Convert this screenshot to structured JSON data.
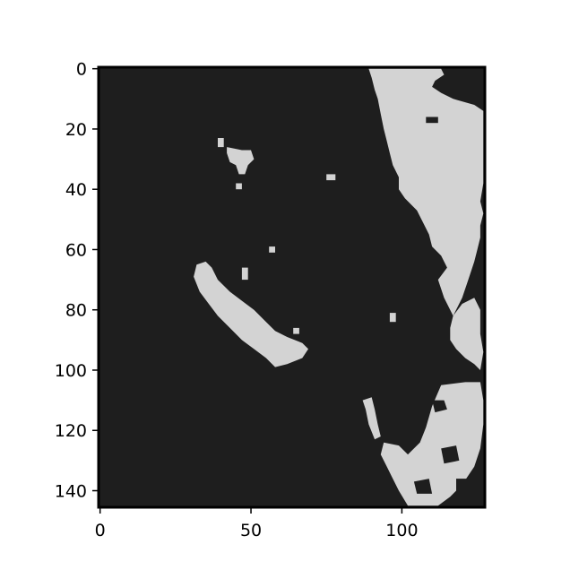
{
  "chart_data": {
    "type": "heatmap",
    "title": "",
    "xlabel": "",
    "ylabel": "",
    "x_range": [
      -0.5,
      127.5
    ],
    "y_range": [
      -0.5,
      145.5
    ],
    "y_inverted": true,
    "x_ticks": [
      0,
      50,
      100
    ],
    "y_ticks": [
      0,
      20,
      40,
      60,
      80,
      100,
      120,
      140
    ],
    "grid": false,
    "legend": "none",
    "colors": {
      "background": "#1e1e1e",
      "foreground": "#d3d3d3",
      "frame": "#000000"
    },
    "binary_mask_regions": [
      {
        "name": "right-top-mass",
        "outline": [
          [
            89,
            0
          ],
          [
            113,
            0
          ],
          [
            114,
            2
          ],
          [
            111,
            4
          ],
          [
            110,
            6
          ],
          [
            113,
            8
          ],
          [
            117,
            10
          ],
          [
            124,
            12
          ],
          [
            127,
            14
          ],
          [
            127,
            22
          ],
          [
            127,
            30
          ],
          [
            127,
            38
          ],
          [
            126,
            44
          ],
          [
            127,
            48
          ],
          [
            126,
            52
          ],
          [
            126,
            56
          ],
          [
            125,
            60
          ],
          [
            124,
            64
          ],
          [
            122,
            70
          ],
          [
            120,
            76
          ],
          [
            117,
            82
          ],
          [
            114,
            76
          ],
          [
            112,
            70
          ],
          [
            115,
            66
          ],
          [
            113,
            62
          ],
          [
            110,
            59
          ],
          [
            109,
            55
          ],
          [
            107,
            51
          ],
          [
            105,
            47
          ],
          [
            103,
            45
          ],
          [
            101,
            43
          ],
          [
            99,
            40
          ],
          [
            99,
            36
          ],
          [
            97,
            32
          ],
          [
            96,
            28
          ],
          [
            95,
            24
          ],
          [
            94,
            20
          ],
          [
            93,
            15
          ],
          [
            92,
            10
          ],
          [
            91,
            7
          ],
          [
            90,
            3
          ]
        ]
      },
      {
        "name": "right-middle-strip",
        "outline": [
          [
            117,
            82
          ],
          [
            120,
            78
          ],
          [
            124,
            76
          ],
          [
            126,
            80
          ],
          [
            126,
            88
          ],
          [
            127,
            94
          ],
          [
            126,
            100
          ],
          [
            124,
            98
          ],
          [
            121,
            96
          ],
          [
            118,
            93
          ],
          [
            116,
            90
          ],
          [
            116,
            86
          ]
        ]
      },
      {
        "name": "bottom-right-mass",
        "outline": [
          [
            113,
            105
          ],
          [
            121,
            104
          ],
          [
            126,
            104
          ],
          [
            127,
            110
          ],
          [
            127,
            118
          ],
          [
            126,
            126
          ],
          [
            124,
            132
          ],
          [
            120,
            138
          ],
          [
            116,
            142
          ],
          [
            112,
            145
          ],
          [
            102,
            145
          ],
          [
            99,
            140
          ],
          [
            97,
            136
          ],
          [
            95,
            132
          ],
          [
            93,
            128
          ],
          [
            94,
            124
          ],
          [
            99,
            125
          ],
          [
            102,
            128
          ],
          [
            106,
            124
          ],
          [
            108,
            119
          ],
          [
            110,
            112
          ]
        ]
      },
      {
        "name": "diagonal-streak",
        "outline": [
          [
            32,
            65
          ],
          [
            35,
            64
          ],
          [
            37,
            66
          ],
          [
            39,
            70
          ],
          [
            43,
            74
          ],
          [
            47,
            77
          ],
          [
            51,
            80
          ],
          [
            55,
            84
          ],
          [
            58,
            87
          ],
          [
            62,
            89
          ],
          [
            67,
            91
          ],
          [
            69,
            93
          ],
          [
            67,
            96
          ],
          [
            62,
            98
          ],
          [
            58,
            99
          ],
          [
            55,
            96
          ],
          [
            51,
            93
          ],
          [
            47,
            90
          ],
          [
            43,
            86
          ],
          [
            39,
            82
          ],
          [
            36,
            78
          ],
          [
            33,
            74
          ],
          [
            31,
            69
          ]
        ]
      },
      {
        "name": "left-of-bottom-streak",
        "outline": [
          [
            87,
            110
          ],
          [
            90,
            109
          ],
          [
            91,
            113
          ],
          [
            92,
            118
          ],
          [
            93,
            122
          ],
          [
            91,
            123
          ],
          [
            89,
            118
          ],
          [
            88,
            113
          ]
        ]
      },
      {
        "name": "blob-upper-mid",
        "outline": [
          [
            42,
            26
          ],
          [
            47,
            27
          ],
          [
            50,
            27
          ],
          [
            51,
            30
          ],
          [
            49,
            32
          ],
          [
            48,
            35
          ],
          [
            46,
            35
          ],
          [
            45,
            32
          ],
          [
            43,
            31
          ],
          [
            42,
            28
          ]
        ]
      },
      {
        "name": "small-blob-a",
        "outline": [
          [
            39,
            23
          ],
          [
            41,
            23
          ],
          [
            41,
            26
          ],
          [
            39,
            26
          ]
        ]
      },
      {
        "name": "small-blob-b",
        "outline": [
          [
            75,
            35
          ],
          [
            78,
            35
          ],
          [
            78,
            37
          ],
          [
            75,
            37
          ]
        ]
      },
      {
        "name": "small-blob-c",
        "outline": [
          [
            47,
            66
          ],
          [
            49,
            66
          ],
          [
            49,
            70
          ],
          [
            47,
            70
          ]
        ]
      },
      {
        "name": "small-blob-d",
        "outline": [
          [
            56,
            59
          ],
          [
            58,
            59
          ],
          [
            58,
            61
          ],
          [
            56,
            61
          ]
        ]
      },
      {
        "name": "small-blob-e",
        "outline": [
          [
            96,
            81
          ],
          [
            98,
            81
          ],
          [
            98,
            84
          ],
          [
            96,
            84
          ]
        ]
      },
      {
        "name": "small-blob-f",
        "outline": [
          [
            64,
            86
          ],
          [
            66,
            86
          ],
          [
            66,
            88
          ],
          [
            64,
            88
          ]
        ]
      },
      {
        "name": "small-blob-g",
        "outline": [
          [
            45,
            38
          ],
          [
            47,
            38
          ],
          [
            47,
            40
          ],
          [
            45,
            40
          ]
        ]
      }
    ],
    "background_holes": [
      {
        "name": "hole-1",
        "outline": [
          [
            110,
            110
          ],
          [
            114,
            110
          ],
          [
            115,
            113
          ],
          [
            111,
            114
          ]
        ]
      },
      {
        "name": "hole-2",
        "outline": [
          [
            113,
            126
          ],
          [
            118,
            125
          ],
          [
            119,
            130
          ],
          [
            114,
            131
          ]
        ]
      },
      {
        "name": "hole-3",
        "outline": [
          [
            104,
            137
          ],
          [
            109,
            136
          ],
          [
            110,
            141
          ],
          [
            105,
            141
          ]
        ]
      },
      {
        "name": "hole-4",
        "outline": [
          [
            118,
            136
          ],
          [
            122,
            136
          ],
          [
            122,
            141
          ],
          [
            118,
            141
          ]
        ]
      },
      {
        "name": "hole-5",
        "outline": [
          [
            108,
            16
          ],
          [
            112,
            16
          ],
          [
            112,
            18
          ],
          [
            108,
            18
          ]
        ]
      }
    ]
  }
}
